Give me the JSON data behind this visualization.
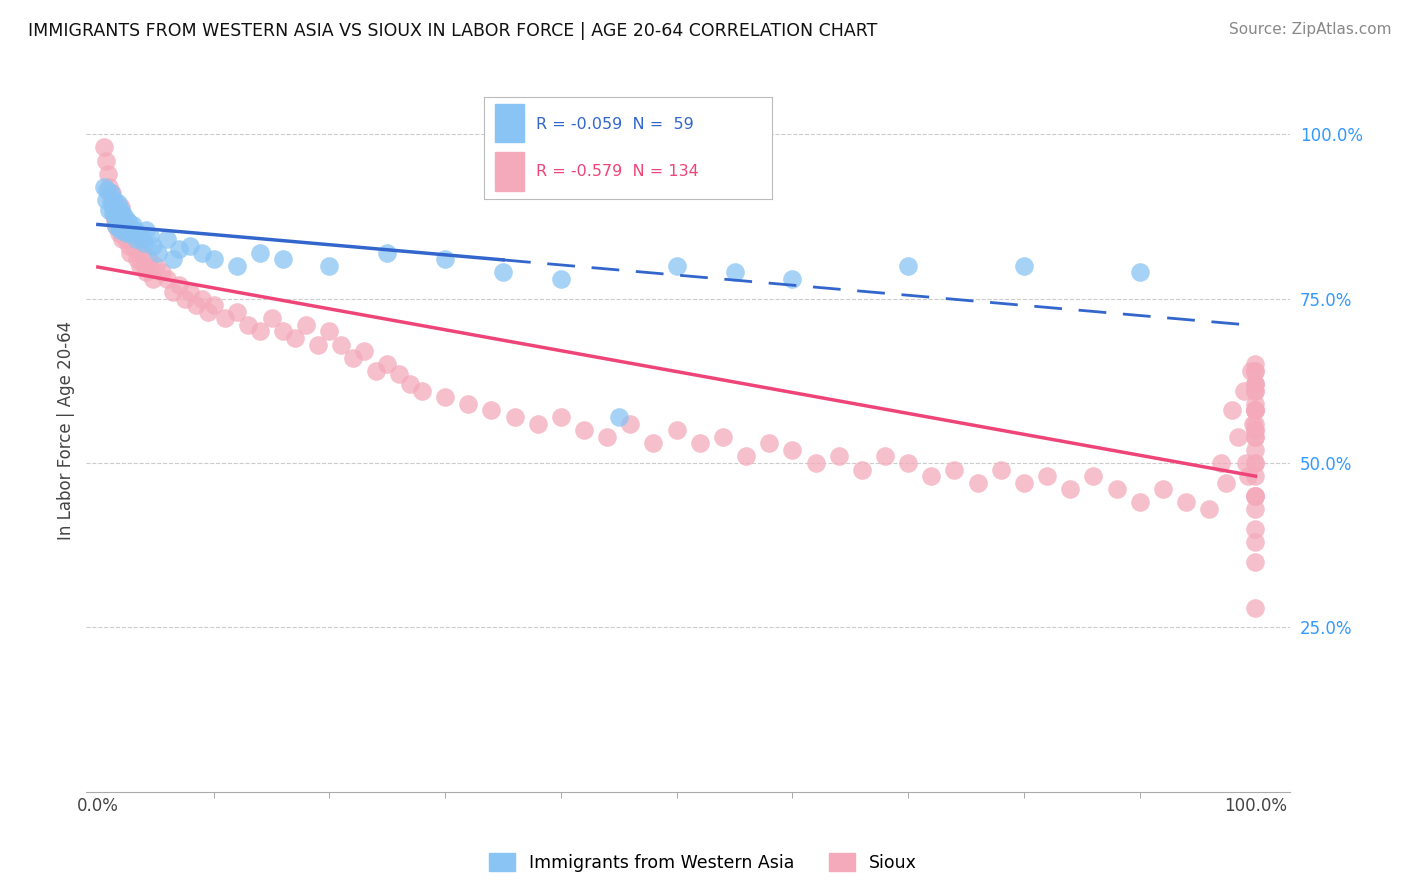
{
  "title": "IMMIGRANTS FROM WESTERN ASIA VS SIOUX IN LABOR FORCE | AGE 20-64 CORRELATION CHART",
  "source": "Source: ZipAtlas.com",
  "ylabel": "In Labor Force | Age 20-64",
  "R_blue": -0.059,
  "N_blue": 59,
  "R_pink": -0.579,
  "N_pink": 134,
  "legend_blue": "Immigrants from Western Asia",
  "legend_pink": "Sioux",
  "color_blue": "#89C4F4",
  "color_pink": "#F4AABB",
  "line_color_blue": "#3366CC",
  "line_color_pink": "#EE4477",
  "tick_color_blue": "#3399FF",
  "background_color": "#ffffff",
  "grid_color": "#cccccc",
  "blue_x": [
    0.005,
    0.007,
    0.008,
    0.01,
    0.011,
    0.012,
    0.013,
    0.013,
    0.014,
    0.015,
    0.016,
    0.016,
    0.017,
    0.018,
    0.018,
    0.019,
    0.02,
    0.02,
    0.021,
    0.022,
    0.022,
    0.023,
    0.023,
    0.024,
    0.025,
    0.026,
    0.027,
    0.028,
    0.03,
    0.032,
    0.033,
    0.035,
    0.038,
    0.04,
    0.042,
    0.045,
    0.048,
    0.052,
    0.06,
    0.065,
    0.07,
    0.08,
    0.09,
    0.1,
    0.12,
    0.14,
    0.16,
    0.2,
    0.25,
    0.3,
    0.35,
    0.4,
    0.45,
    0.5,
    0.55,
    0.6,
    0.7,
    0.8,
    0.9
  ],
  "blue_y": [
    0.92,
    0.9,
    0.915,
    0.885,
    0.91,
    0.895,
    0.89,
    0.88,
    0.9,
    0.885,
    0.87,
    0.86,
    0.895,
    0.875,
    0.865,
    0.855,
    0.885,
    0.87,
    0.88,
    0.865,
    0.855,
    0.875,
    0.86,
    0.85,
    0.87,
    0.858,
    0.865,
    0.85,
    0.862,
    0.855,
    0.84,
    0.848,
    0.84,
    0.835,
    0.855,
    0.845,
    0.83,
    0.82,
    0.84,
    0.81,
    0.825,
    0.83,
    0.82,
    0.81,
    0.8,
    0.82,
    0.81,
    0.8,
    0.82,
    0.81,
    0.79,
    0.78,
    0.57,
    0.8,
    0.79,
    0.78,
    0.8,
    0.8,
    0.79
  ],
  "pink_x": [
    0.005,
    0.007,
    0.009,
    0.01,
    0.011,
    0.012,
    0.013,
    0.014,
    0.015,
    0.016,
    0.017,
    0.018,
    0.019,
    0.02,
    0.021,
    0.022,
    0.023,
    0.024,
    0.025,
    0.026,
    0.027,
    0.028,
    0.03,
    0.032,
    0.034,
    0.036,
    0.038,
    0.04,
    0.042,
    0.044,
    0.046,
    0.048,
    0.05,
    0.055,
    0.06,
    0.065,
    0.07,
    0.075,
    0.08,
    0.085,
    0.09,
    0.095,
    0.1,
    0.11,
    0.12,
    0.13,
    0.14,
    0.15,
    0.16,
    0.17,
    0.18,
    0.19,
    0.2,
    0.21,
    0.22,
    0.23,
    0.24,
    0.25,
    0.26,
    0.27,
    0.28,
    0.3,
    0.32,
    0.34,
    0.36,
    0.38,
    0.4,
    0.42,
    0.44,
    0.46,
    0.48,
    0.5,
    0.52,
    0.54,
    0.56,
    0.58,
    0.6,
    0.62,
    0.64,
    0.66,
    0.68,
    0.7,
    0.72,
    0.74,
    0.76,
    0.78,
    0.8,
    0.82,
    0.84,
    0.86,
    0.88,
    0.9,
    0.92,
    0.94,
    0.96,
    0.97,
    0.975,
    0.98,
    0.985,
    0.99,
    0.992,
    0.994,
    0.996,
    0.998,
    1.0,
    1.0,
    1.0,
    1.0,
    1.0,
    1.0,
    1.0,
    1.0,
    1.0,
    1.0,
    1.0,
    1.0,
    1.0,
    1.0,
    1.0,
    1.0,
    1.0,
    1.0,
    1.0,
    1.0,
    1.0,
    1.0,
    1.0,
    1.0,
    1.0,
    1.0,
    1.0,
    1.0,
    1.0,
    1.0
  ],
  "pink_y": [
    0.98,
    0.96,
    0.94,
    0.92,
    0.9,
    0.91,
    0.89,
    0.875,
    0.87,
    0.86,
    0.88,
    0.85,
    0.865,
    0.89,
    0.84,
    0.87,
    0.855,
    0.84,
    0.86,
    0.845,
    0.83,
    0.82,
    0.84,
    0.825,
    0.81,
    0.8,
    0.82,
    0.8,
    0.79,
    0.81,
    0.795,
    0.78,
    0.8,
    0.79,
    0.78,
    0.76,
    0.77,
    0.75,
    0.76,
    0.74,
    0.75,
    0.73,
    0.74,
    0.72,
    0.73,
    0.71,
    0.7,
    0.72,
    0.7,
    0.69,
    0.71,
    0.68,
    0.7,
    0.68,
    0.66,
    0.67,
    0.64,
    0.65,
    0.635,
    0.62,
    0.61,
    0.6,
    0.59,
    0.58,
    0.57,
    0.56,
    0.57,
    0.55,
    0.54,
    0.56,
    0.53,
    0.55,
    0.53,
    0.54,
    0.51,
    0.53,
    0.52,
    0.5,
    0.51,
    0.49,
    0.51,
    0.5,
    0.48,
    0.49,
    0.47,
    0.49,
    0.47,
    0.48,
    0.46,
    0.48,
    0.46,
    0.44,
    0.46,
    0.44,
    0.43,
    0.5,
    0.47,
    0.58,
    0.54,
    0.61,
    0.5,
    0.48,
    0.64,
    0.56,
    0.59,
    0.64,
    0.56,
    0.62,
    0.58,
    0.64,
    0.5,
    0.55,
    0.62,
    0.58,
    0.65,
    0.54,
    0.61,
    0.58,
    0.45,
    0.62,
    0.48,
    0.55,
    0.61,
    0.5,
    0.45,
    0.52,
    0.58,
    0.45,
    0.54,
    0.4,
    0.35,
    0.28,
    0.43,
    0.38
  ]
}
